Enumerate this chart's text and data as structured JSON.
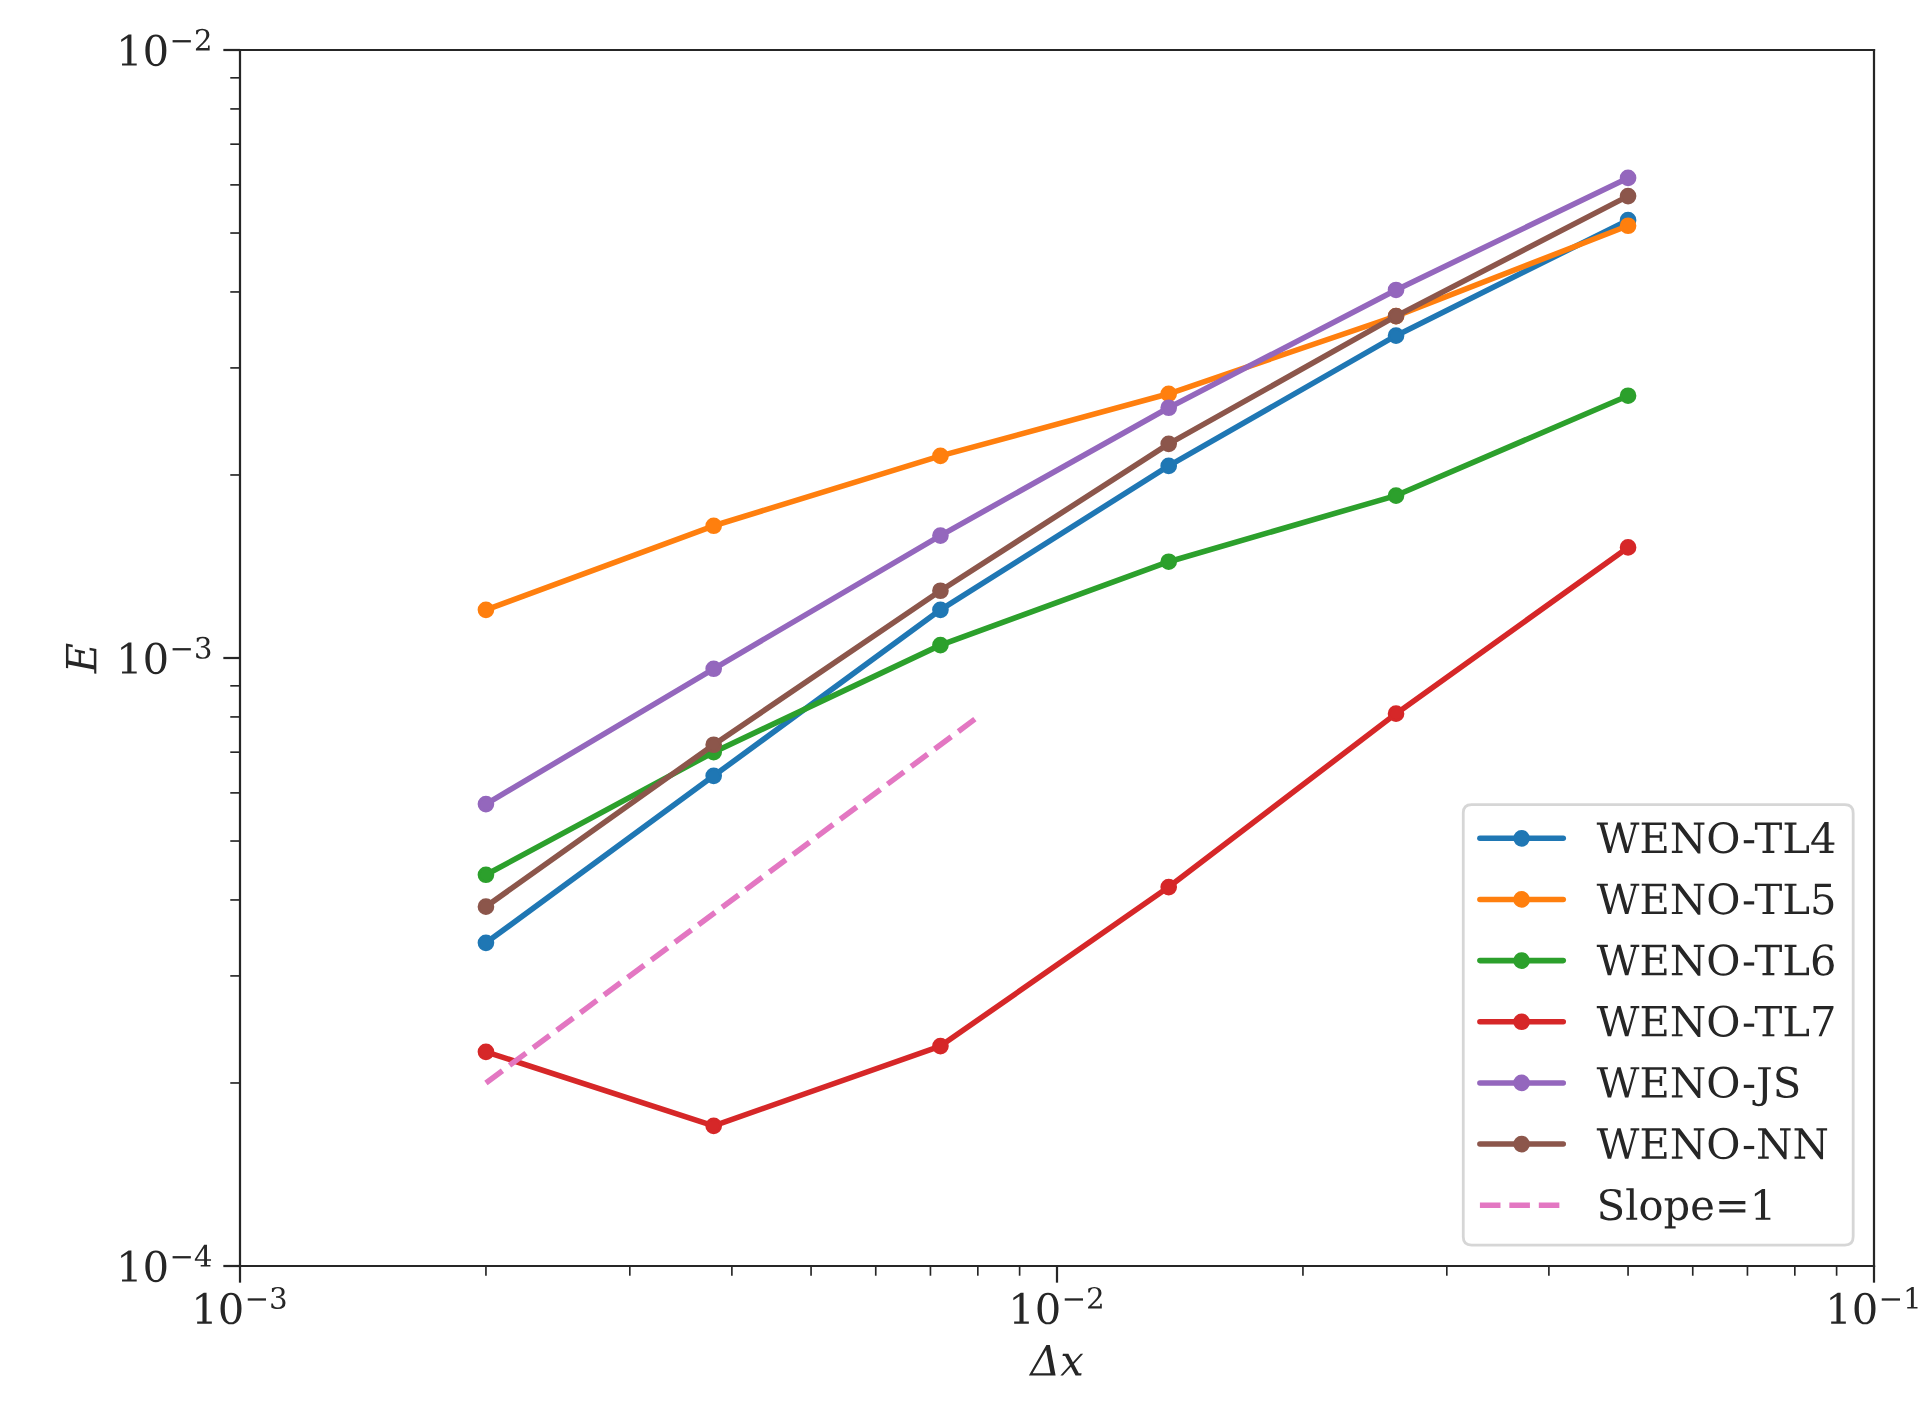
{
  "chart_data": {
    "type": "line",
    "xlabel": "Δx",
    "ylabel": "E",
    "log": "xy",
    "x": [
      0.002,
      0.0038,
      0.0072,
      0.0137,
      0.026,
      0.05
    ],
    "xlim": [
      0.001,
      0.1
    ],
    "ylim": [
      0.0001,
      0.01
    ],
    "xticks": [
      {
        "value": 0.001,
        "label": "10$^{−3}$"
      },
      {
        "value": 0.01,
        "label": "10$^{−2}$"
      },
      {
        "value": 0.1,
        "label": "10$^{−1}$"
      }
    ],
    "yticks": [
      {
        "value": 0.0001,
        "label": "10$^{−4}$"
      },
      {
        "value": 0.001,
        "label": "10$^{−3}$"
      },
      {
        "value": 0.01,
        "label": "10$^{−2}$"
      }
    ],
    "grid": false,
    "legend": "bottom right",
    "marker": "circle",
    "line_style": "solid",
    "series": [
      {
        "name": "WENO-TL4",
        "color": "#1f77b4",
        "values": [
          0.00034,
          0.00064,
          0.0012,
          0.00207,
          0.00339,
          0.00525
        ]
      },
      {
        "name": "WENO-TL5",
        "color": "#ff7f0e",
        "values": [
          0.0012,
          0.00165,
          0.00215,
          0.00272,
          0.00365,
          0.00514
        ]
      },
      {
        "name": "WENO-TL6",
        "color": "#2ca02c",
        "values": [
          0.00044,
          0.0007,
          0.00105,
          0.00144,
          0.00185,
          0.0027
        ]
      },
      {
        "name": "WENO-TL7",
        "color": "#d62728",
        "values": [
          0.000225,
          0.00017,
          0.00023,
          0.00042,
          0.00081,
          0.00152
        ]
      },
      {
        "name": "WENO-JS",
        "color": "#9467bd",
        "values": [
          0.000575,
          0.00096,
          0.00159,
          0.00258,
          0.00403,
          0.00616
        ]
      },
      {
        "name": "WENO-NN",
        "color": "#8c564b",
        "values": [
          0.00039,
          0.00072,
          0.00129,
          0.00225,
          0.00365,
          0.00575
        ]
      },
      {
        "name": "Slope=1",
        "color": "#e377c2",
        "x": [
          0.002,
          0.008
        ],
        "values": [
          0.0002,
          0.0008
        ],
        "line_style": "dashed",
        "marker": "none"
      }
    ]
  }
}
